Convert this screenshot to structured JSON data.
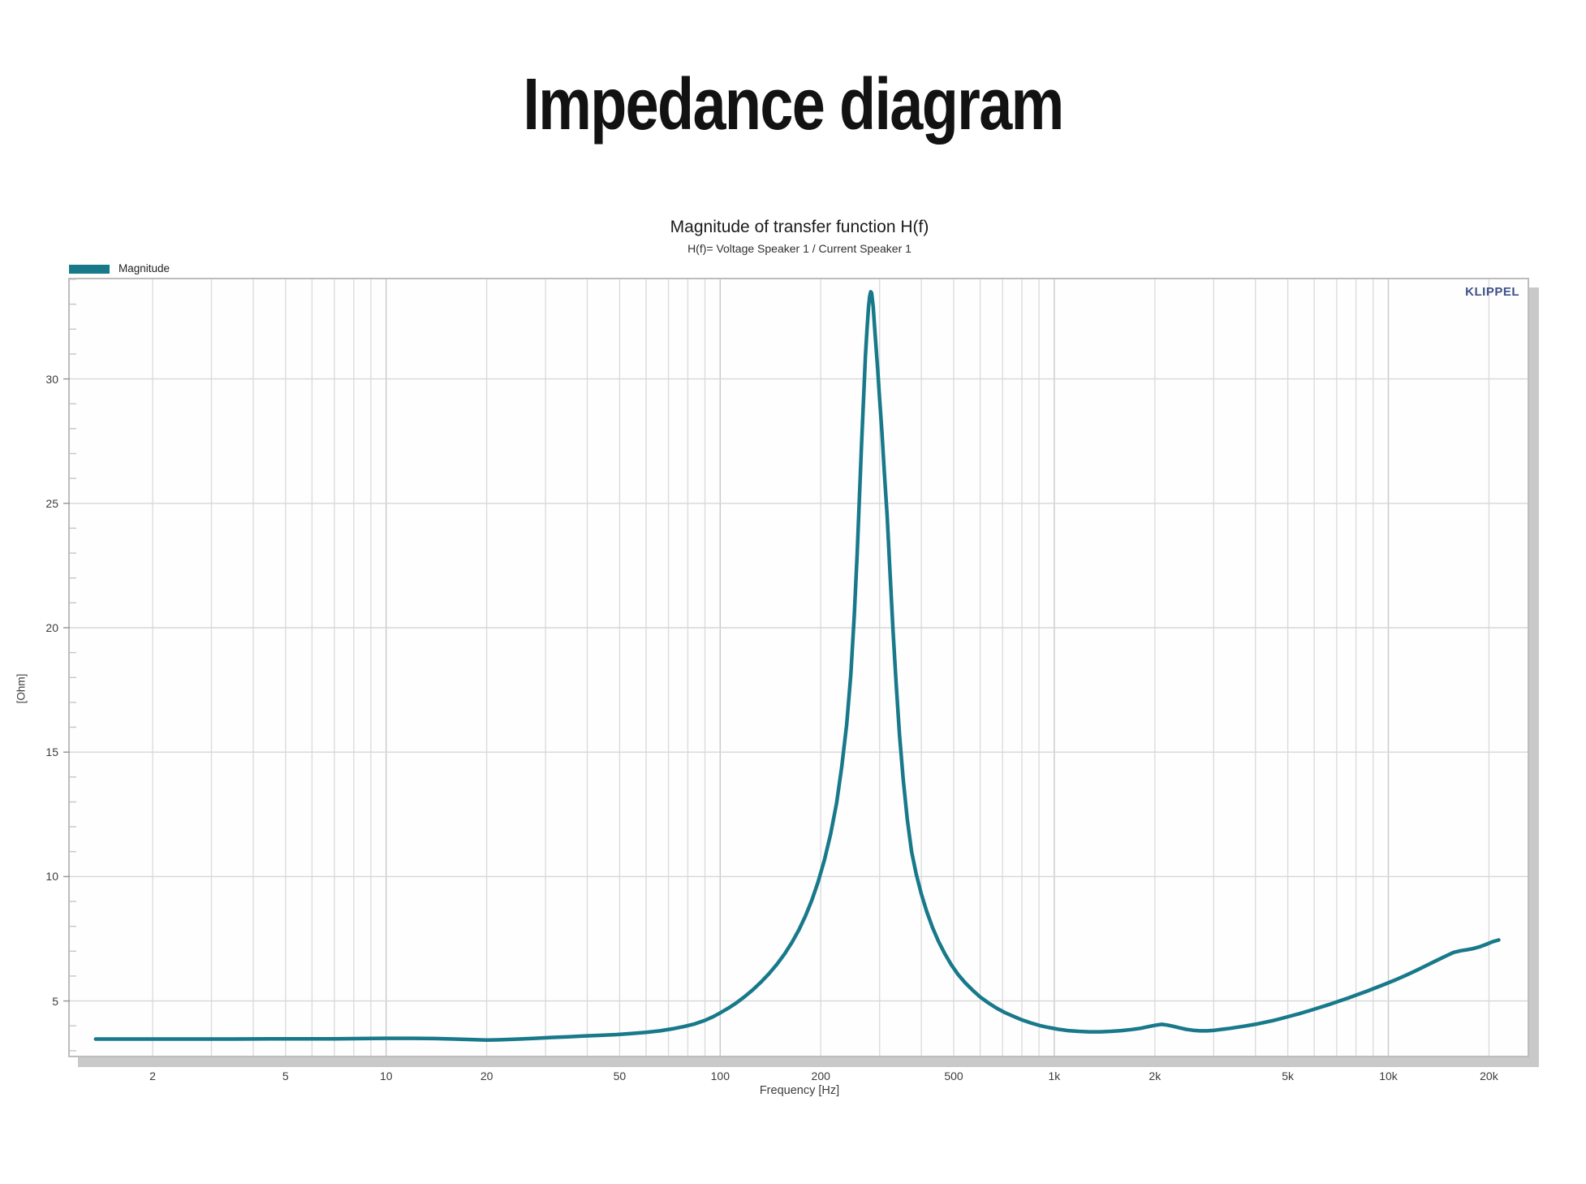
{
  "page": {
    "title": "Impedance diagram"
  },
  "chart_data": {
    "type": "line",
    "title": "Magnitude of transfer function H(f)",
    "subtitle": "H(f)= Voltage Speaker 1 / Current Speaker 1",
    "xlabel": "Frequency [Hz]",
    "ylabel": "[Ohm]",
    "xscale": "log",
    "yscale": "linear",
    "xlim": [
      1.13,
      26100
    ],
    "ylim": [
      2.8,
      34.0
    ],
    "grid": "horizontal-major and vertical log-minor, light gray, on",
    "legend_position": "top-left-above-plot",
    "watermark": "KLIPPEL",
    "y_ticks": [
      5,
      10,
      15,
      20,
      25,
      30
    ],
    "x_ticks": [
      {
        "value": 2,
        "label": "2"
      },
      {
        "value": 5,
        "label": "5"
      },
      {
        "value": 10,
        "label": "10"
      },
      {
        "value": 20,
        "label": "20"
      },
      {
        "value": 50,
        "label": "50"
      },
      {
        "value": 100,
        "label": "100"
      },
      {
        "value": 200,
        "label": "200"
      },
      {
        "value": 500,
        "label": "500"
      },
      {
        "value": 1000,
        "label": "1k"
      },
      {
        "value": 2000,
        "label": "2k"
      },
      {
        "value": 5000,
        "label": "5k"
      },
      {
        "value": 10000,
        "label": "10k"
      },
      {
        "value": 20000,
        "label": "20k"
      }
    ],
    "colors": {
      "series": "#17798a",
      "grid_minor": "#dcdcdc",
      "grid_major": "#c9c9c9",
      "panel_border": "#bdbdbd",
      "panel_shadow": "#c9c9c9",
      "watermark": "#3d5189",
      "tick_text": "#3c3c3c"
    },
    "series": [
      {
        "name": "Magnitude",
        "color": "#17798a",
        "points": [
          [
            1.35,
            3.47
          ],
          [
            1.7,
            3.47
          ],
          [
            2.2,
            3.47
          ],
          [
            2.8,
            3.47
          ],
          [
            3.5,
            3.47
          ],
          [
            4.5,
            3.48
          ],
          [
            5.5,
            3.48
          ],
          [
            7,
            3.48
          ],
          [
            8.5,
            3.49
          ],
          [
            10,
            3.5
          ],
          [
            12,
            3.5
          ],
          [
            14,
            3.49
          ],
          [
            16,
            3.47
          ],
          [
            18,
            3.45
          ],
          [
            20,
            3.43
          ],
          [
            22,
            3.44
          ],
          [
            25,
            3.47
          ],
          [
            28,
            3.5
          ],
          [
            31,
            3.53
          ],
          [
            35,
            3.56
          ],
          [
            39,
            3.59
          ],
          [
            44,
            3.62
          ],
          [
            49,
            3.65
          ],
          [
            54,
            3.69
          ],
          [
            60,
            3.74
          ],
          [
            66,
            3.8
          ],
          [
            72,
            3.88
          ],
          [
            78,
            3.97
          ],
          [
            84,
            4.08
          ],
          [
            90,
            4.22
          ],
          [
            95,
            4.36
          ],
          [
            100,
            4.52
          ],
          [
            106,
            4.72
          ],
          [
            112,
            4.93
          ],
          [
            118,
            5.16
          ],
          [
            125,
            5.44
          ],
          [
            132,
            5.74
          ],
          [
            140,
            6.1
          ],
          [
            148,
            6.48
          ],
          [
            156,
            6.9
          ],
          [
            164,
            7.36
          ],
          [
            172,
            7.86
          ],
          [
            180,
            8.42
          ],
          [
            188,
            9.05
          ],
          [
            196,
            9.75
          ],
          [
            205,
            10.65
          ],
          [
            214,
            11.7
          ],
          [
            223,
            12.95
          ],
          [
            231,
            14.4
          ],
          [
            239,
            16.1
          ],
          [
            246,
            18.1
          ],
          [
            252,
            20.5
          ],
          [
            257,
            23.0
          ],
          [
            261,
            25.2
          ],
          [
            265,
            27.4
          ],
          [
            269,
            29.4
          ],
          [
            272,
            30.9
          ],
          [
            275,
            32.0
          ],
          [
            278,
            32.9
          ],
          [
            280,
            33.3
          ],
          [
            282,
            33.5
          ],
          [
            284,
            33.45
          ],
          [
            287,
            32.9
          ],
          [
            290,
            32.0
          ],
          [
            293,
            31.2
          ],
          [
            296,
            30.4
          ],
          [
            300,
            29.2
          ],
          [
            305,
            27.8
          ],
          [
            310,
            26.2
          ],
          [
            316,
            24.5
          ],
          [
            322,
            22.3
          ],
          [
            329,
            19.9
          ],
          [
            336,
            17.8
          ],
          [
            344,
            15.7
          ],
          [
            353,
            13.9
          ],
          [
            363,
            12.3
          ],
          [
            374,
            11.0
          ],
          [
            386,
            10.1
          ],
          [
            400,
            9.3
          ],
          [
            415,
            8.6
          ],
          [
            432,
            7.95
          ],
          [
            450,
            7.4
          ],
          [
            470,
            6.9
          ],
          [
            492,
            6.45
          ],
          [
            516,
            6.05
          ],
          [
            542,
            5.72
          ],
          [
            570,
            5.43
          ],
          [
            600,
            5.16
          ],
          [
            635,
            4.92
          ],
          [
            672,
            4.71
          ],
          [
            712,
            4.53
          ],
          [
            755,
            4.38
          ],
          [
            800,
            4.24
          ],
          [
            850,
            4.12
          ],
          [
            905,
            4.01
          ],
          [
            965,
            3.93
          ],
          [
            1030,
            3.86
          ],
          [
            1100,
            3.81
          ],
          [
            1180,
            3.78
          ],
          [
            1270,
            3.76
          ],
          [
            1370,
            3.76
          ],
          [
            1480,
            3.78
          ],
          [
            1590,
            3.81
          ],
          [
            1700,
            3.85
          ],
          [
            1810,
            3.9
          ],
          [
            1920,
            3.97
          ],
          [
            2020,
            4.03
          ],
          [
            2100,
            4.06
          ],
          [
            2180,
            4.03
          ],
          [
            2270,
            3.98
          ],
          [
            2370,
            3.92
          ],
          [
            2480,
            3.86
          ],
          [
            2600,
            3.82
          ],
          [
            2730,
            3.8
          ],
          [
            2870,
            3.8
          ],
          [
            3020,
            3.82
          ],
          [
            3180,
            3.86
          ],
          [
            3360,
            3.9
          ],
          [
            3550,
            3.95
          ],
          [
            3760,
            4.0
          ],
          [
            3990,
            4.06
          ],
          [
            4240,
            4.13
          ],
          [
            4510,
            4.21
          ],
          [
            4800,
            4.3
          ],
          [
            5110,
            4.4
          ],
          [
            5450,
            4.5
          ],
          [
            5810,
            4.61
          ],
          [
            6200,
            4.73
          ],
          [
            6620,
            4.85
          ],
          [
            7070,
            4.98
          ],
          [
            7550,
            5.11
          ],
          [
            8070,
            5.25
          ],
          [
            8620,
            5.39
          ],
          [
            9210,
            5.54
          ],
          [
            9840,
            5.69
          ],
          [
            10520,
            5.85
          ],
          [
            11240,
            6.02
          ],
          [
            12010,
            6.2
          ],
          [
            12840,
            6.39
          ],
          [
            13720,
            6.58
          ],
          [
            14660,
            6.77
          ],
          [
            15670,
            6.95
          ],
          [
            16500,
            7.02
          ],
          [
            17200,
            7.06
          ],
          [
            17900,
            7.1
          ],
          [
            18700,
            7.17
          ],
          [
            19600,
            7.27
          ],
          [
            20500,
            7.38
          ],
          [
            21400,
            7.45
          ]
        ]
      }
    ]
  }
}
